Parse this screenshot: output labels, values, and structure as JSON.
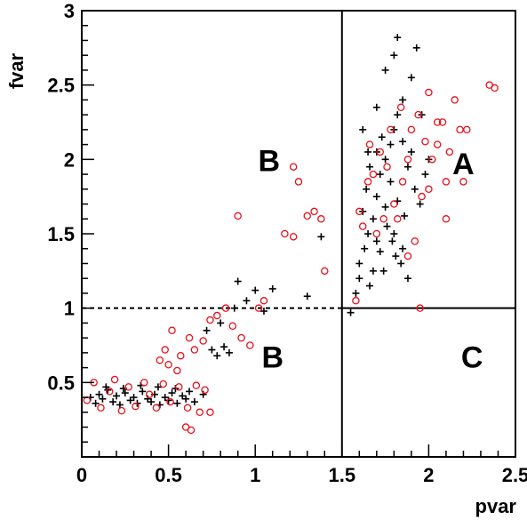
{
  "chart_data": {
    "type": "scatter",
    "xlabel": "pvar",
    "ylabel": "fvar",
    "xlim": [
      0,
      2.5
    ],
    "ylim": [
      0,
      3
    ],
    "xticks": [
      0,
      0.5,
      1,
      1.5,
      2,
      2.5
    ],
    "xtick_labels": [
      "0",
      "0.5",
      "1",
      "1.5",
      "2",
      "2.5"
    ],
    "yticks": [
      0.5,
      1,
      1.5,
      2,
      2.5,
      3
    ],
    "ytick_labels": [
      "0.5",
      "1",
      "1.5",
      "2",
      "2.5",
      "3"
    ],
    "grid": false,
    "colors": {
      "cross_series": "#000000",
      "circle_series": "#e8101a"
    },
    "region_lines": {
      "vertical_at_x": 1.5,
      "horizontal_dashed_at_y": 1.0,
      "horizontal_solid_at_y_from_x": [
        1.0,
        1.5
      ]
    },
    "region_labels": [
      {
        "text": "A",
        "x": 2.2,
        "y": 1.9
      },
      {
        "text": "B",
        "x": 1.08,
        "y": 1.92
      },
      {
        "text": "B",
        "x": 1.1,
        "y": 0.6
      },
      {
        "text": "C",
        "x": 2.25,
        "y": 0.6
      }
    ],
    "series": [
      {
        "marker": "cross",
        "points": [
          [
            0.05,
            0.4
          ],
          [
            0.08,
            0.36
          ],
          [
            0.1,
            0.42
          ],
          [
            0.12,
            0.39
          ],
          [
            0.15,
            0.45
          ],
          [
            0.18,
            0.37
          ],
          [
            0.2,
            0.41
          ],
          [
            0.22,
            0.35
          ],
          [
            0.25,
            0.43
          ],
          [
            0.28,
            0.38
          ],
          [
            0.3,
            0.4
          ],
          [
            0.32,
            0.36
          ],
          [
            0.35,
            0.44
          ],
          [
            0.38,
            0.39
          ],
          [
            0.4,
            0.37
          ],
          [
            0.42,
            0.42
          ],
          [
            0.45,
            0.35
          ],
          [
            0.48,
            0.4
          ],
          [
            0.5,
            0.38
          ],
          [
            0.52,
            0.43
          ],
          [
            0.55,
            0.36
          ],
          [
            0.58,
            0.41
          ],
          [
            0.6,
            0.39
          ],
          [
            0.62,
            0.44
          ],
          [
            0.65,
            0.37
          ],
          [
            0.14,
            0.47
          ],
          [
            0.24,
            0.46
          ],
          [
            0.34,
            0.48
          ],
          [
            0.44,
            0.47
          ],
          [
            0.54,
            0.46
          ],
          [
            0.7,
            0.42
          ],
          [
            0.75,
            0.72
          ],
          [
            0.78,
            0.68
          ],
          [
            0.82,
            0.74
          ],
          [
            0.85,
            0.7
          ],
          [
            0.72,
            0.85
          ],
          [
            0.8,
            0.9
          ],
          [
            0.88,
            1.0
          ],
          [
            0.95,
            1.05
          ],
          [
            1.05,
            0.98
          ],
          [
            0.9,
            1.18
          ],
          [
            1.0,
            1.12
          ],
          [
            1.1,
            1.13
          ],
          [
            1.3,
            1.08
          ],
          [
            1.38,
            1.48
          ],
          [
            1.55,
            0.97
          ],
          [
            1.6,
            1.2
          ],
          [
            1.63,
            1.4
          ],
          [
            1.65,
            1.5
          ],
          [
            1.68,
            1.6
          ],
          [
            1.7,
            1.75
          ],
          [
            1.72,
            1.9
          ],
          [
            1.75,
            2.0
          ],
          [
            1.78,
            2.1
          ],
          [
            1.8,
            2.2
          ],
          [
            1.82,
            2.3
          ],
          [
            1.85,
            2.4
          ],
          [
            1.62,
            1.65
          ],
          [
            1.64,
            1.8
          ],
          [
            1.66,
            1.95
          ],
          [
            1.7,
            2.05
          ],
          [
            1.73,
            2.15
          ],
          [
            1.76,
            1.55
          ],
          [
            1.79,
            1.45
          ],
          [
            1.81,
            1.35
          ],
          [
            1.84,
            1.3
          ],
          [
            1.68,
            1.25
          ],
          [
            1.72,
            1.38
          ],
          [
            1.75,
            1.68
          ],
          [
            1.78,
            1.85
          ],
          [
            1.82,
            1.72
          ],
          [
            1.86,
            1.62
          ],
          [
            1.88,
            1.95
          ],
          [
            1.9,
            2.05
          ],
          [
            1.92,
            1.8
          ],
          [
            1.95,
            1.7
          ],
          [
            1.98,
            1.9
          ],
          [
            2.0,
            2.0
          ],
          [
            1.58,
            1.1
          ],
          [
            1.6,
            1.3
          ],
          [
            1.66,
            1.15
          ],
          [
            1.7,
            1.45
          ],
          [
            1.74,
            1.25
          ],
          [
            1.8,
            1.5
          ],
          [
            1.85,
            1.4
          ],
          [
            1.88,
            1.2
          ],
          [
            1.75,
            2.6
          ],
          [
            1.8,
            2.7
          ],
          [
            1.82,
            2.82
          ],
          [
            1.93,
            2.75
          ],
          [
            1.9,
            2.55
          ],
          [
            1.7,
            2.35
          ],
          [
            1.62,
            2.2
          ],
          [
            1.65,
            2.05
          ],
          [
            1.85,
            2.12
          ],
          [
            1.96,
            2.3
          ]
        ]
      },
      {
        "marker": "circle",
        "points": [
          [
            0.03,
            0.38
          ],
          [
            0.07,
            0.5
          ],
          [
            0.11,
            0.33
          ],
          [
            0.16,
            0.44
          ],
          [
            0.19,
            0.52
          ],
          [
            0.23,
            0.31
          ],
          [
            0.27,
            0.47
          ],
          [
            0.31,
            0.34
          ],
          [
            0.36,
            0.5
          ],
          [
            0.39,
            0.42
          ],
          [
            0.43,
            0.33
          ],
          [
            0.47,
            0.49
          ],
          [
            0.51,
            0.37
          ],
          [
            0.56,
            0.47
          ],
          [
            0.61,
            0.33
          ],
          [
            0.66,
            0.48
          ],
          [
            0.71,
            0.45
          ],
          [
            0.74,
            0.3
          ],
          [
            0.6,
            0.2
          ],
          [
            0.63,
            0.18
          ],
          [
            0.68,
            0.3
          ],
          [
            0.45,
            0.65
          ],
          [
            0.5,
            0.62
          ],
          [
            0.55,
            0.58
          ],
          [
            0.57,
            0.68
          ],
          [
            0.48,
            0.72
          ],
          [
            0.52,
            0.85
          ],
          [
            0.62,
            0.8
          ],
          [
            0.65,
            0.72
          ],
          [
            0.7,
            0.78
          ],
          [
            0.74,
            0.92
          ],
          [
            0.78,
            0.95
          ],
          [
            0.83,
            1.0
          ],
          [
            0.87,
            0.88
          ],
          [
            0.92,
            0.8
          ],
          [
            0.97,
            0.75
          ],
          [
            1.02,
            1.0
          ],
          [
            1.05,
            1.05
          ],
          [
            0.9,
            1.62
          ],
          [
            1.17,
            1.5
          ],
          [
            1.22,
            1.95
          ],
          [
            1.25,
            1.85
          ],
          [
            1.3,
            1.62
          ],
          [
            1.34,
            1.65
          ],
          [
            1.38,
            1.6
          ],
          [
            1.4,
            1.25
          ],
          [
            1.22,
            1.48
          ],
          [
            1.58,
            1.05
          ],
          [
            1.62,
            1.55
          ],
          [
            1.65,
            1.85
          ],
          [
            1.68,
            1.9
          ],
          [
            1.72,
            2.05
          ],
          [
            1.74,
            1.6
          ],
          [
            1.78,
            2.2
          ],
          [
            1.8,
            1.7
          ],
          [
            1.85,
            1.85
          ],
          [
            1.88,
            2.0
          ],
          [
            1.9,
            2.2
          ],
          [
            1.92,
            1.45
          ],
          [
            1.94,
            2.3
          ],
          [
            1.96,
            1.75
          ],
          [
            1.98,
            2.12
          ],
          [
            2.0,
            1.8
          ],
          [
            2.02,
            2.0
          ],
          [
            2.05,
            2.1
          ],
          [
            2.08,
            2.25
          ],
          [
            2.1,
            1.85
          ],
          [
            2.12,
            2.05
          ],
          [
            2.15,
            2.4
          ],
          [
            2.18,
            2.2
          ],
          [
            2.2,
            1.85
          ],
          [
            2.22,
            2.2
          ],
          [
            2.35,
            2.5
          ],
          [
            2.38,
            2.48
          ],
          [
            1.95,
            1.0
          ],
          [
            1.7,
            1.5
          ],
          [
            1.6,
            1.65
          ],
          [
            1.88,
            1.35
          ],
          [
            1.82,
            1.6
          ],
          [
            1.76,
            1.95
          ],
          [
            1.84,
            2.35
          ],
          [
            2.0,
            2.45
          ],
          [
            2.05,
            2.25
          ],
          [
            1.66,
            2.1
          ],
          [
            2.1,
            1.6
          ]
        ]
      }
    ]
  }
}
